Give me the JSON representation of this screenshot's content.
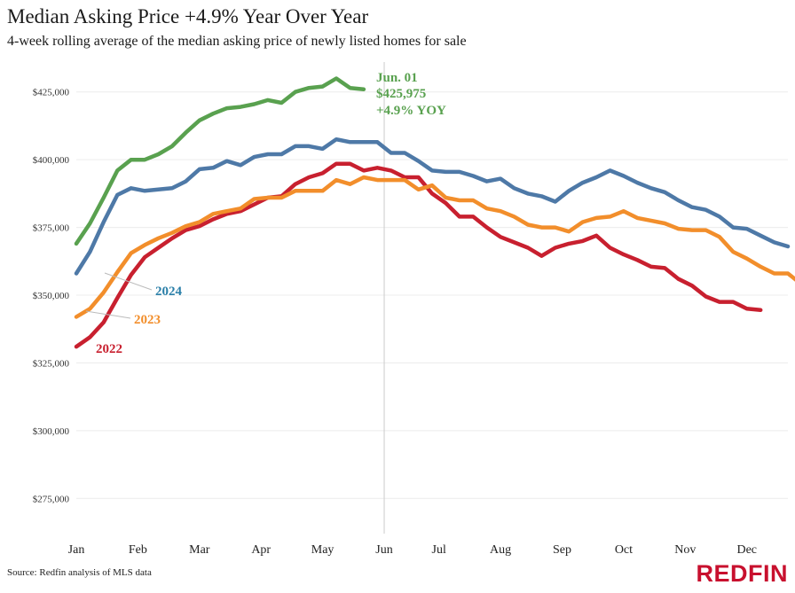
{
  "header": {
    "title": "Median Asking Price +4.9% Year Over Year",
    "subtitle": "4-week rolling average of the median asking price of newly listed homes for sale"
  },
  "footer": {
    "source": "Source: Redfin analysis of MLS data",
    "logo": "REDFIN"
  },
  "colors": {
    "2024_line": "#4e79a7",
    "2024_label": "#2a7fa8",
    "2023": "#f28e2b",
    "2022": "#c8202f",
    "2025": "#59a14f",
    "grid": "#ececec",
    "reference_line": "#cccccc"
  },
  "chart_data": {
    "type": "line",
    "title": "Median Asking Price +4.9% Year Over Year",
    "subtitle": "4-week rolling average of the median asking price of newly listed homes for sale",
    "x_axis": {
      "type": "week-of-year",
      "tick_labels": [
        "Jan",
        "Feb",
        "Mar",
        "Apr",
        "May",
        "Jun",
        "Jul",
        "Aug",
        "Sep",
        "Oct",
        "Nov",
        "Dec"
      ],
      "tick_weeks": [
        1,
        5.5,
        10,
        14.5,
        19,
        23.5,
        27.5,
        32,
        36.5,
        41,
        45.5,
        50
      ],
      "range": [
        1,
        53
      ]
    },
    "y_axis": {
      "ticks": [
        275000,
        300000,
        325000,
        350000,
        375000,
        400000,
        425000
      ],
      "tick_labels": [
        "$275,000",
        "$300,000",
        "$325,000",
        "$350,000",
        "$375,000",
        "$400,000",
        "$425,000"
      ],
      "range": [
        262000,
        438000
      ]
    },
    "grid": true,
    "reference_week": 23.5,
    "series": [
      {
        "name": "2025",
        "label": "",
        "color_key": "2025",
        "values": [
          369000,
          376500,
          386000,
          396000,
          400000,
          400000,
          402000,
          405000,
          410000,
          414500,
          417000,
          419000,
          419500,
          420500,
          422000,
          421000,
          425000,
          426500,
          427000,
          430000,
          426500,
          425975
        ]
      },
      {
        "name": "2024",
        "label": "2024",
        "color_key": "2024_line",
        "values": [
          358000,
          366000,
          377000,
          387000,
          389500,
          388500,
          389000,
          389500,
          392000,
          396500,
          397000,
          399500,
          398000,
          401000,
          402000,
          402000,
          405000,
          405000,
          404000,
          407500,
          406500,
          406500,
          406500,
          402500,
          402500,
          399500,
          396000,
          395500,
          395500,
          394000,
          392000,
          393000,
          389500,
          387500,
          386500,
          384500,
          388500,
          391500,
          393500,
          396000,
          394000,
          391500,
          389500,
          388000,
          385000,
          382500,
          381500,
          379000,
          375000,
          374500,
          372000,
          369500,
          368000
        ]
      },
      {
        "name": "2023",
        "label": "2023",
        "color_key": "2023",
        "values": [
          342000,
          345000,
          351000,
          358500,
          365500,
          368500,
          371000,
          373000,
          375500,
          377000,
          380000,
          381000,
          382000,
          385500,
          386000,
          386000,
          388500,
          388500,
          388500,
          392500,
          391000,
          393500,
          392500,
          392500,
          392500,
          389000,
          390500,
          386000,
          385000,
          385000,
          382000,
          381000,
          379000,
          376000,
          375000,
          375000,
          373500,
          377000,
          378500,
          379000,
          381000,
          378500,
          377500,
          376500,
          374500,
          374000,
          374000,
          371500,
          366000,
          363500,
          360500,
          358000,
          358000,
          354000
        ]
      },
      {
        "name": "2022",
        "label": "2022",
        "color_key": "2022",
        "values": [
          331000,
          334500,
          340000,
          349000,
          357500,
          364000,
          367500,
          371000,
          374000,
          375500,
          378000,
          380000,
          381000,
          383500,
          386000,
          386500,
          391000,
          393500,
          395000,
          398500,
          398500,
          396000,
          397000,
          396000,
          393500,
          393500,
          387500,
          384000,
          379000,
          379000,
          375000,
          371500,
          369500,
          367500,
          364500,
          367500,
          369000,
          370000,
          372000,
          367500,
          365000,
          363000,
          360500,
          360000,
          356000,
          353500,
          349500,
          347500,
          347500,
          345000,
          344500
        ]
      }
    ],
    "annotation": {
      "series": "2025",
      "date": "Jun. 01",
      "value": "$425,975",
      "change": "+4.9% YOY"
    }
  }
}
